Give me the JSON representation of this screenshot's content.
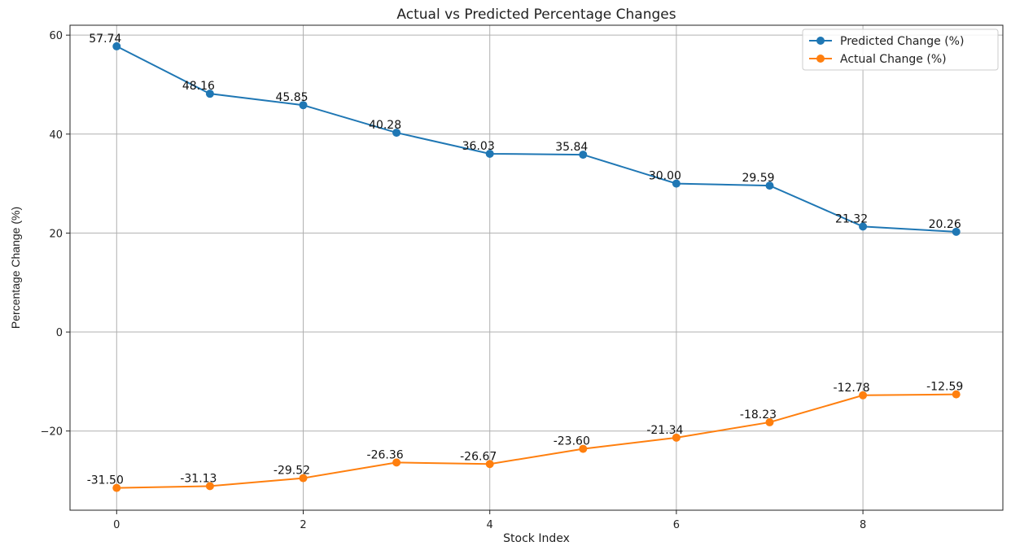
{
  "chart_data": {
    "type": "line",
    "title": "Actual vs Predicted Percentage Changes",
    "xlabel": "Stock Index",
    "ylabel": "Percentage Change (%)",
    "x": [
      0,
      1,
      2,
      3,
      4,
      5,
      6,
      7,
      8,
      9
    ],
    "xlim": [
      -0.5,
      9.5
    ],
    "ylim": [
      -36,
      62
    ],
    "xticks": [
      0,
      2,
      4,
      6,
      8
    ],
    "yticks": [
      -20,
      0,
      20,
      40,
      60
    ],
    "ytick_labels": [
      "−20",
      "0",
      "20",
      "40",
      "60"
    ],
    "grid": true,
    "legend_position": "top-right",
    "series": [
      {
        "name": "Predicted Change (%)",
        "color": "#1f77b4",
        "values": [
          57.74,
          48.16,
          45.85,
          40.28,
          36.03,
          35.84,
          30.0,
          29.59,
          21.32,
          20.26
        ],
        "labels": [
          "57.74",
          "48.16",
          "45.85",
          "40.28",
          "36.03",
          "35.84",
          "30.00",
          "29.59",
          "21.32",
          "20.26"
        ]
      },
      {
        "name": "Actual Change (%)",
        "color": "#ff7f0e",
        "values": [
          -31.5,
          -31.13,
          -29.52,
          -26.36,
          -26.67,
          -23.6,
          -21.34,
          -18.23,
          -12.78,
          -12.59
        ],
        "labels": [
          "-31.50",
          "-31.13",
          "-29.52",
          "-26.36",
          "-26.67",
          "-23.60",
          "-21.34",
          "-18.23",
          "-12.78",
          "-12.59"
        ]
      }
    ]
  }
}
